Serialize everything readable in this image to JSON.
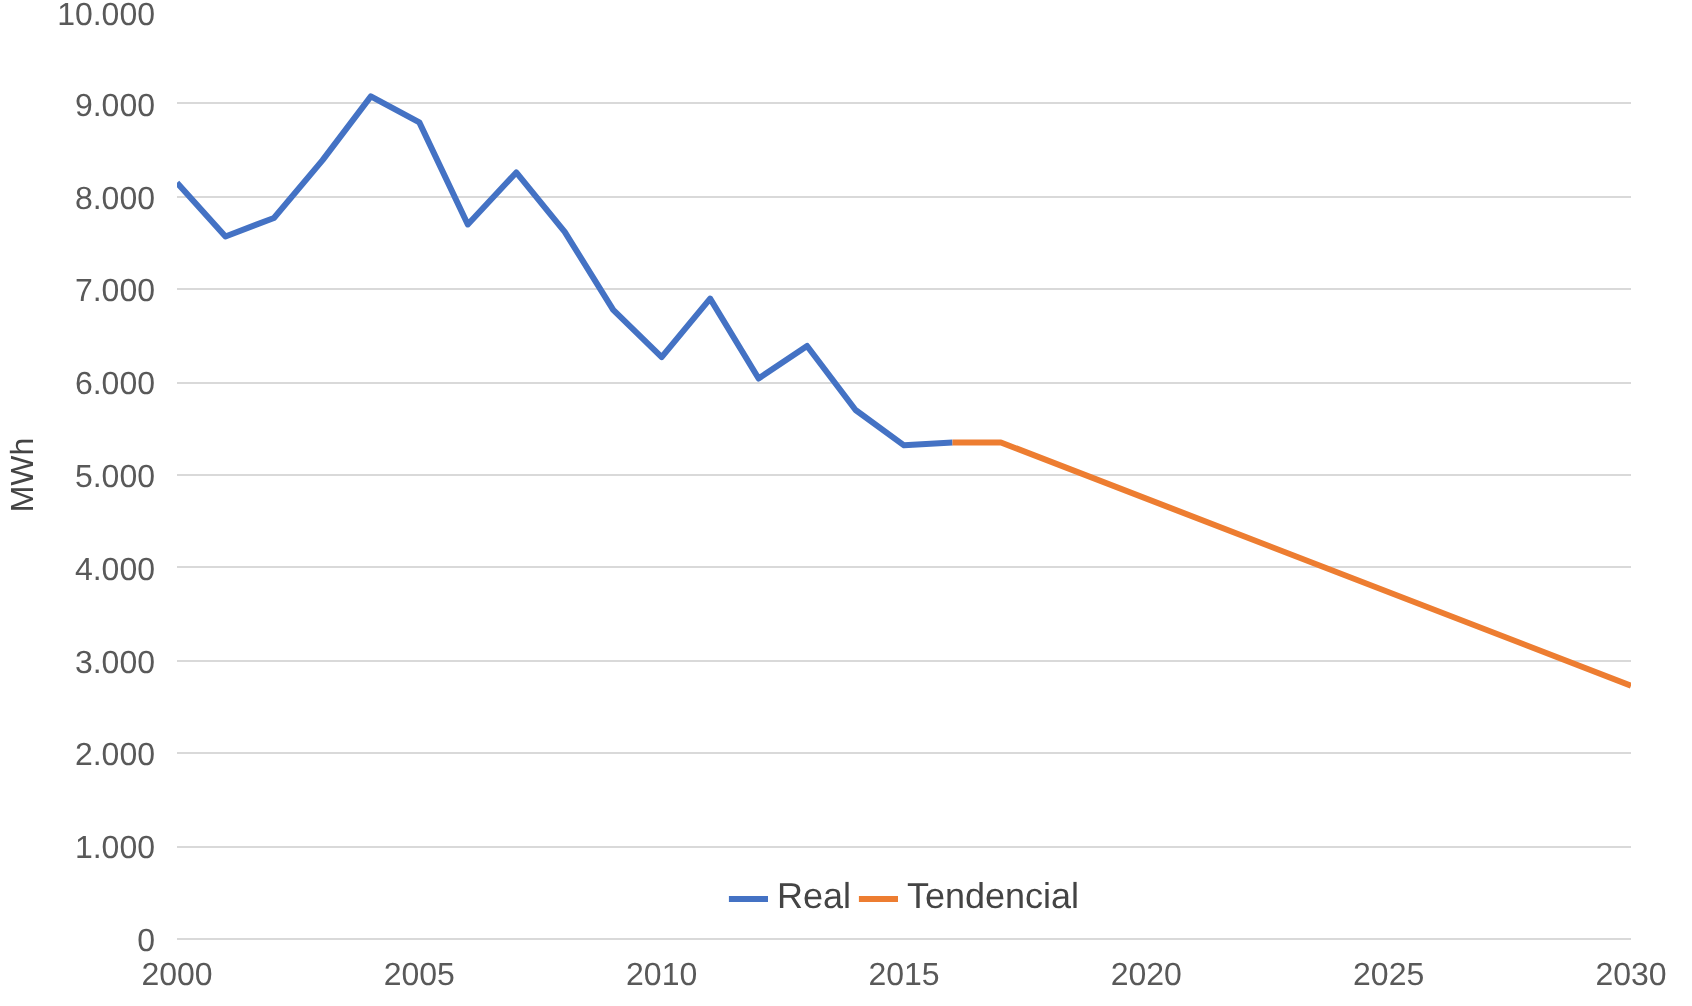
{
  "chart_data": {
    "type": "line",
    "ylabel": "MWh",
    "xlim": [
      2000,
      2030
    ],
    "xticks": [
      2000,
      2005,
      2010,
      2015,
      2020,
      2025,
      2030
    ],
    "ylim": [
      0,
      10000
    ],
    "yticks": [
      0,
      {
        "value": 1000,
        "label": "1.000"
      },
      {
        "value": 2000,
        "label": "2.000"
      },
      {
        "value": 3000,
        "label": "3.000"
      },
      {
        "value": 4000,
        "label": "4.000"
      },
      {
        "value": 5000,
        "label": "5.000"
      },
      {
        "value": 6000,
        "label": "6.000"
      },
      {
        "value": 7000,
        "label": "7.000"
      },
      {
        "value": 8000,
        "label": "8.000"
      },
      {
        "value": 9000,
        "label": "9.000"
      },
      {
        "value": 10000,
        "label": "10.000"
      }
    ],
    "grid": "y",
    "legend": "bottom",
    "marker": "none",
    "line_style": "solid",
    "series": [
      {
        "name": "Real",
        "color": "#4472c4",
        "x": [
          2000,
          2001,
          2002,
          2003,
          2004,
          2005,
          2006,
          2007,
          2008,
          2009,
          2010,
          2011,
          2012,
          2013,
          2014,
          2015,
          2016
        ],
        "values": [
          8150,
          7570,
          7770,
          8390,
          9080,
          8800,
          7700,
          8260,
          7620,
          6780,
          6270,
          6900,
          6040,
          6390,
          5700,
          5320,
          5350
        ]
      },
      {
        "name": "Tendencial",
        "color": "#ed7d31",
        "x": [
          2016,
          2017,
          2030
        ],
        "values": [
          5350,
          5350,
          2730
        ]
      }
    ]
  }
}
